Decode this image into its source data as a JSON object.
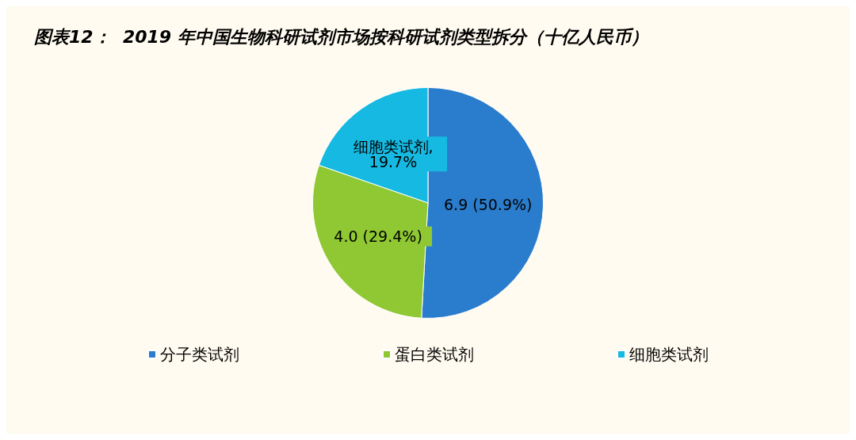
{
  "chart_data": {
    "type": "pie",
    "title": "图表12：  2019 年中国生物科研试剂市场按科研试剂类型拆分（十亿人民币）",
    "categories": [
      "分子类试剂",
      "蛋白类试剂",
      "细胞类试剂"
    ],
    "values": [
      50.9,
      29.4,
      19.7
    ],
    "colors": [
      "#2a7dcc",
      "#8fc833",
      "#16b9e1"
    ],
    "value_labels": [
      "6.9 (50.9%)",
      "4.0 (29.4%)",
      "细胞类试剂,19.7%"
    ],
    "legend": "bottom"
  }
}
